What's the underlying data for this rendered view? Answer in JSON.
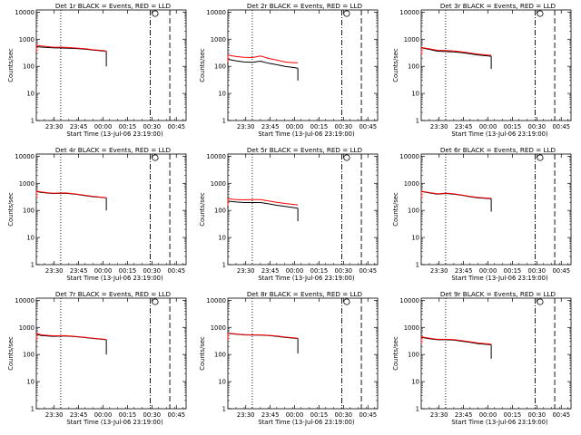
{
  "chart_data": [
    {
      "type": "line",
      "title": "Det 1r BLACK = Events, RED = LLD",
      "xlabel": "Start Time (13-Jul-06 23:19:00)",
      "ylabel": "Counts/sec",
      "scale": "log",
      "ylim": [
        1,
        12000
      ],
      "xlim_min": [
        0,
        78
      ],
      "yticks": [
        "10000",
        "1000",
        "100",
        "10",
        "1"
      ],
      "xticks": [
        {
          "v": 11,
          "label": "23:30"
        },
        {
          "v": 26,
          "label": "23:45"
        },
        {
          "v": 41,
          "label": "00:00"
        },
        {
          "v": 56,
          "label": "00:15"
        },
        {
          "v": 71,
          "label": "00:30"
        },
        {
          "v": 86,
          "label": "00:45"
        }
      ],
      "markers": {
        "dotted": 15,
        "dashdot": 70,
        "dashed": 82,
        "symbol": 73
      },
      "series": [
        {
          "color": "#000000",
          "x": [
            0,
            3,
            10,
            18,
            25,
            30,
            35,
            41,
            43
          ],
          "y": [
            530,
            510,
            480,
            470,
            450,
            430,
            400,
            370,
            360
          ],
          "end_drop": 100
        },
        {
          "color": "#ff0000",
          "x": [
            0,
            3,
            10,
            18,
            25,
            30,
            35,
            41,
            43
          ],
          "y": [
            600,
            560,
            510,
            500,
            470,
            445,
            410,
            380,
            365
          ]
        }
      ]
    },
    {
      "type": "line",
      "title": "Det 2r BLACK = Events, RED = LLD",
      "xlabel": "Start Time (13-Jul-06 23:19:00)",
      "ylabel": "Counts/sec",
      "scale": "log",
      "ylim": [
        1,
        12000
      ],
      "xlim_min": [
        0,
        78
      ],
      "yticks": [
        "10000",
        "1000",
        "100",
        "10",
        "1"
      ],
      "xticks": [
        {
          "v": 11,
          "label": "23:30"
        },
        {
          "v": 26,
          "label": "23:45"
        },
        {
          "v": 41,
          "label": "00:00"
        },
        {
          "v": 56,
          "label": "00:15"
        },
        {
          "v": 71,
          "label": "00:30"
        },
        {
          "v": 86,
          "label": "00:45"
        }
      ],
      "markers": {
        "dotted": 15,
        "dashdot": 70,
        "dashed": 82,
        "symbol": 73
      },
      "series": [
        {
          "color": "#000000",
          "x": [
            0,
            5,
            10,
            15,
            20,
            25,
            30,
            35,
            41,
            43
          ],
          "y": [
            180,
            160,
            145,
            140,
            155,
            130,
            115,
            100,
            90,
            85
          ],
          "end_drop": 30
        },
        {
          "color": "#ff0000",
          "x": [
            0,
            5,
            10,
            15,
            20,
            25,
            30,
            35,
            41,
            43
          ],
          "y": [
            260,
            230,
            215,
            210,
            240,
            195,
            170,
            145,
            135,
            135
          ]
        }
      ]
    },
    {
      "type": "line",
      "title": "Det 3r BLACK = Events, RED = LLD",
      "xlabel": "Start Time (13-Jul-06 23:19:00)",
      "ylabel": "Counts/sec",
      "scale": "log",
      "ylim": [
        1,
        12000
      ],
      "xlim_min": [
        0,
        78
      ],
      "yticks": [
        "10000",
        "1000",
        "100",
        "10",
        "1"
      ],
      "xticks": [
        {
          "v": 11,
          "label": "23:30"
        },
        {
          "v": 26,
          "label": "23:45"
        },
        {
          "v": 41,
          "label": "00:00"
        },
        {
          "v": 56,
          "label": "00:15"
        },
        {
          "v": 71,
          "label": "00:30"
        },
        {
          "v": 86,
          "label": "00:45"
        }
      ],
      "markers": {
        "dotted": 15,
        "dashdot": 70,
        "dashed": 82,
        "symbol": 73
      },
      "series": [
        {
          "color": "#000000",
          "x": [
            0,
            5,
            10,
            15,
            20,
            25,
            30,
            35,
            41,
            43
          ],
          "y": [
            480,
            420,
            360,
            350,
            340,
            320,
            290,
            260,
            240,
            235
          ],
          "end_drop": 80
        },
        {
          "color": "#ff0000",
          "x": [
            0,
            5,
            10,
            15,
            20,
            25,
            30,
            35,
            41,
            43
          ],
          "y": [
            490,
            440,
            390,
            380,
            370,
            340,
            310,
            280,
            260,
            255
          ]
        }
      ]
    },
    {
      "type": "line",
      "title": "Det 4r BLACK = Events, RED = LLD",
      "xlabel": "Start Time (13-Jul-06 23:19:00)",
      "ylabel": "Counts/sec",
      "scale": "log",
      "ylim": [
        1,
        12000
      ],
      "xlim_min": [
        0,
        78
      ],
      "yticks": [
        "10000",
        "1000",
        "100",
        "10",
        "1"
      ],
      "xticks": [
        {
          "v": 11,
          "label": "23:30"
        },
        {
          "v": 26,
          "label": "23:45"
        },
        {
          "v": 41,
          "label": "00:00"
        },
        {
          "v": 56,
          "label": "00:15"
        },
        {
          "v": 71,
          "label": "00:30"
        },
        {
          "v": 86,
          "label": "00:45"
        }
      ],
      "markers": {
        "dotted": 15,
        "dashdot": 70,
        "dashed": 82,
        "symbol": 73
      },
      "series": [
        {
          "color": "#000000",
          "x": [
            0,
            3,
            10,
            18,
            25,
            30,
            35,
            41,
            43
          ],
          "y": [
            500,
            460,
            420,
            430,
            390,
            350,
            320,
            300,
            290
          ],
          "end_drop": 100
        },
        {
          "color": "#ff0000",
          "x": [
            0,
            3,
            10,
            18,
            25,
            30,
            35,
            41,
            43
          ],
          "y": [
            520,
            475,
            430,
            440,
            400,
            360,
            330,
            305,
            295
          ]
        }
      ]
    },
    {
      "type": "line",
      "title": "Det 5r BLACK = Events, RED = LLD",
      "xlabel": "Start Time (13-Jul-06 23:19:00)",
      "ylabel": "Counts/sec",
      "scale": "log",
      "ylim": [
        1,
        12000
      ],
      "xlim_min": [
        0,
        78
      ],
      "yticks": [
        "10000",
        "1000",
        "100",
        "10",
        "1"
      ],
      "xticks": [
        {
          "v": 11,
          "label": "23:30"
        },
        {
          "v": 26,
          "label": "23:45"
        },
        {
          "v": 41,
          "label": "00:00"
        },
        {
          "v": 56,
          "label": "00:15"
        },
        {
          "v": 71,
          "label": "00:30"
        },
        {
          "v": 86,
          "label": "00:45"
        }
      ],
      "markers": {
        "dotted": 15,
        "dashdot": 70,
        "dashed": 82,
        "symbol": 73
      },
      "series": [
        {
          "color": "#000000",
          "x": [
            0,
            5,
            10,
            15,
            20,
            25,
            30,
            35,
            41,
            43
          ],
          "y": [
            220,
            205,
            195,
            195,
            195,
            175,
            155,
            140,
            125,
            120
          ],
          "end_drop": 40
        },
        {
          "color": "#ff0000",
          "x": [
            0,
            5,
            10,
            15,
            20,
            25,
            30,
            35,
            41,
            43
          ],
          "y": [
            270,
            250,
            245,
            250,
            250,
            225,
            200,
            180,
            165,
            160
          ]
        }
      ]
    },
    {
      "type": "line",
      "title": "Det 6r BLACK = Events, RED = LLD",
      "xlabel": "Start Time (13-Jul-06 23:19:00)",
      "ylabel": "Counts/sec",
      "scale": "log",
      "ylim": [
        1,
        12000
      ],
      "xlim_min": [
        0,
        78
      ],
      "yticks": [
        "10000",
        "1000",
        "100",
        "10",
        "1"
      ],
      "xticks": [
        {
          "v": 11,
          "label": "23:30"
        },
        {
          "v": 26,
          "label": "23:45"
        },
        {
          "v": 41,
          "label": "00:00"
        },
        {
          "v": 56,
          "label": "00:15"
        },
        {
          "v": 71,
          "label": "00:30"
        },
        {
          "v": 86,
          "label": "00:45"
        }
      ],
      "markers": {
        "dotted": 15,
        "dashdot": 70,
        "dashed": 82,
        "symbol": 73
      },
      "series": [
        {
          "color": "#000000",
          "x": [
            0,
            5,
            10,
            15,
            20,
            25,
            30,
            35,
            41,
            43
          ],
          "y": [
            500,
            440,
            400,
            420,
            400,
            360,
            320,
            290,
            275,
            270
          ],
          "end_drop": 90
        },
        {
          "color": "#ff0000",
          "x": [
            0,
            5,
            10,
            15,
            20,
            25,
            30,
            35,
            41,
            43
          ],
          "y": [
            510,
            455,
            410,
            435,
            410,
            370,
            330,
            300,
            285,
            280
          ]
        }
      ]
    },
    {
      "type": "line",
      "title": "Det 7r BLACK = Events, RED = LLD",
      "xlabel": "Start Time (13-Jul-06 23:19:00)",
      "ylabel": "Counts/sec",
      "scale": "log",
      "ylim": [
        1,
        12000
      ],
      "xlim_min": [
        0,
        78
      ],
      "yticks": [
        "10000",
        "1000",
        "100",
        "10",
        "1"
      ],
      "xticks": [
        {
          "v": 11,
          "label": "23:30"
        },
        {
          "v": 26,
          "label": "23:45"
        },
        {
          "v": 41,
          "label": "00:00"
        },
        {
          "v": 56,
          "label": "00:15"
        },
        {
          "v": 71,
          "label": "00:30"
        },
        {
          "v": 86,
          "label": "00:45"
        }
      ],
      "markers": {
        "dotted": 15,
        "dashdot": 70,
        "dashed": 82,
        "symbol": 73
      },
      "series": [
        {
          "color": "#000000",
          "x": [
            0,
            3,
            10,
            18,
            25,
            30,
            35,
            41,
            43
          ],
          "y": [
            560,
            500,
            470,
            480,
            450,
            420,
            390,
            360,
            350
          ],
          "end_drop": 100
        },
        {
          "color": "#ff0000",
          "x": [
            0,
            3,
            10,
            18,
            25,
            30,
            35,
            41,
            43
          ],
          "y": [
            610,
            530,
            490,
            495,
            460,
            430,
            400,
            370,
            360
          ]
        }
      ]
    },
    {
      "type": "line",
      "title": "Det 8r BLACK = Events, RED = LLD",
      "xlabel": "Start Time (13-Jul-06 23:19:00)",
      "ylabel": "Counts/sec",
      "scale": "log",
      "ylim": [
        1,
        12000
      ],
      "xlim_min": [
        0,
        78
      ],
      "yticks": [
        "10000",
        "1000",
        "100",
        "10",
        "1"
      ],
      "xticks": [
        {
          "v": 11,
          "label": "23:30"
        },
        {
          "v": 26,
          "label": "23:45"
        },
        {
          "v": 41,
          "label": "00:00"
        },
        {
          "v": 56,
          "label": "00:15"
        },
        {
          "v": 71,
          "label": "00:30"
        },
        {
          "v": 86,
          "label": "00:45"
        }
      ],
      "markers": {
        "dotted": 15,
        "dashdot": 70,
        "dashed": 82,
        "symbol": 73
      },
      "series": [
        {
          "color": "#000000",
          "x": [
            0,
            5,
            10,
            15,
            20,
            25,
            30,
            35,
            41,
            43
          ],
          "y": [
            600,
            560,
            530,
            520,
            520,
            500,
            470,
            430,
            400,
            390
          ],
          "end_drop": 110
        },
        {
          "color": "#ff0000",
          "x": [
            0,
            5,
            10,
            15,
            20,
            25,
            30,
            35,
            41,
            43
          ],
          "y": [
            620,
            575,
            540,
            530,
            530,
            510,
            480,
            440,
            410,
            400
          ]
        }
      ]
    },
    {
      "type": "line",
      "title": "Det 9r BLACK = Events, RED = LLD",
      "xlabel": "Start Time (13-Jul-06 23:19:00)",
      "ylabel": "Counts/sec",
      "scale": "log",
      "ylim": [
        1,
        12000
      ],
      "xlim_min": [
        0,
        78
      ],
      "yticks": [
        "10000",
        "1000",
        "100",
        "10",
        "1"
      ],
      "xticks": [
        {
          "v": 11,
          "label": "23:30"
        },
        {
          "v": 26,
          "label": "23:45"
        },
        {
          "v": 41,
          "label": "00:00"
        },
        {
          "v": 56,
          "label": "00:15"
        },
        {
          "v": 71,
          "label": "00:30"
        },
        {
          "v": 86,
          "label": "00:45"
        }
      ],
      "markers": {
        "dotted": 15,
        "dashdot": 70,
        "dashed": 82,
        "symbol": 73
      },
      "series": [
        {
          "color": "#000000",
          "x": [
            0,
            5,
            10,
            15,
            20,
            25,
            30,
            35,
            41,
            43
          ],
          "y": [
            430,
            380,
            350,
            350,
            340,
            310,
            280,
            250,
            235,
            230
          ],
          "end_drop": 70
        },
        {
          "color": "#ff0000",
          "x": [
            0,
            5,
            10,
            15,
            20,
            25,
            30,
            35,
            41,
            43
          ],
          "y": [
            450,
            395,
            365,
            365,
            355,
            325,
            295,
            265,
            245,
            240
          ]
        }
      ]
    }
  ]
}
